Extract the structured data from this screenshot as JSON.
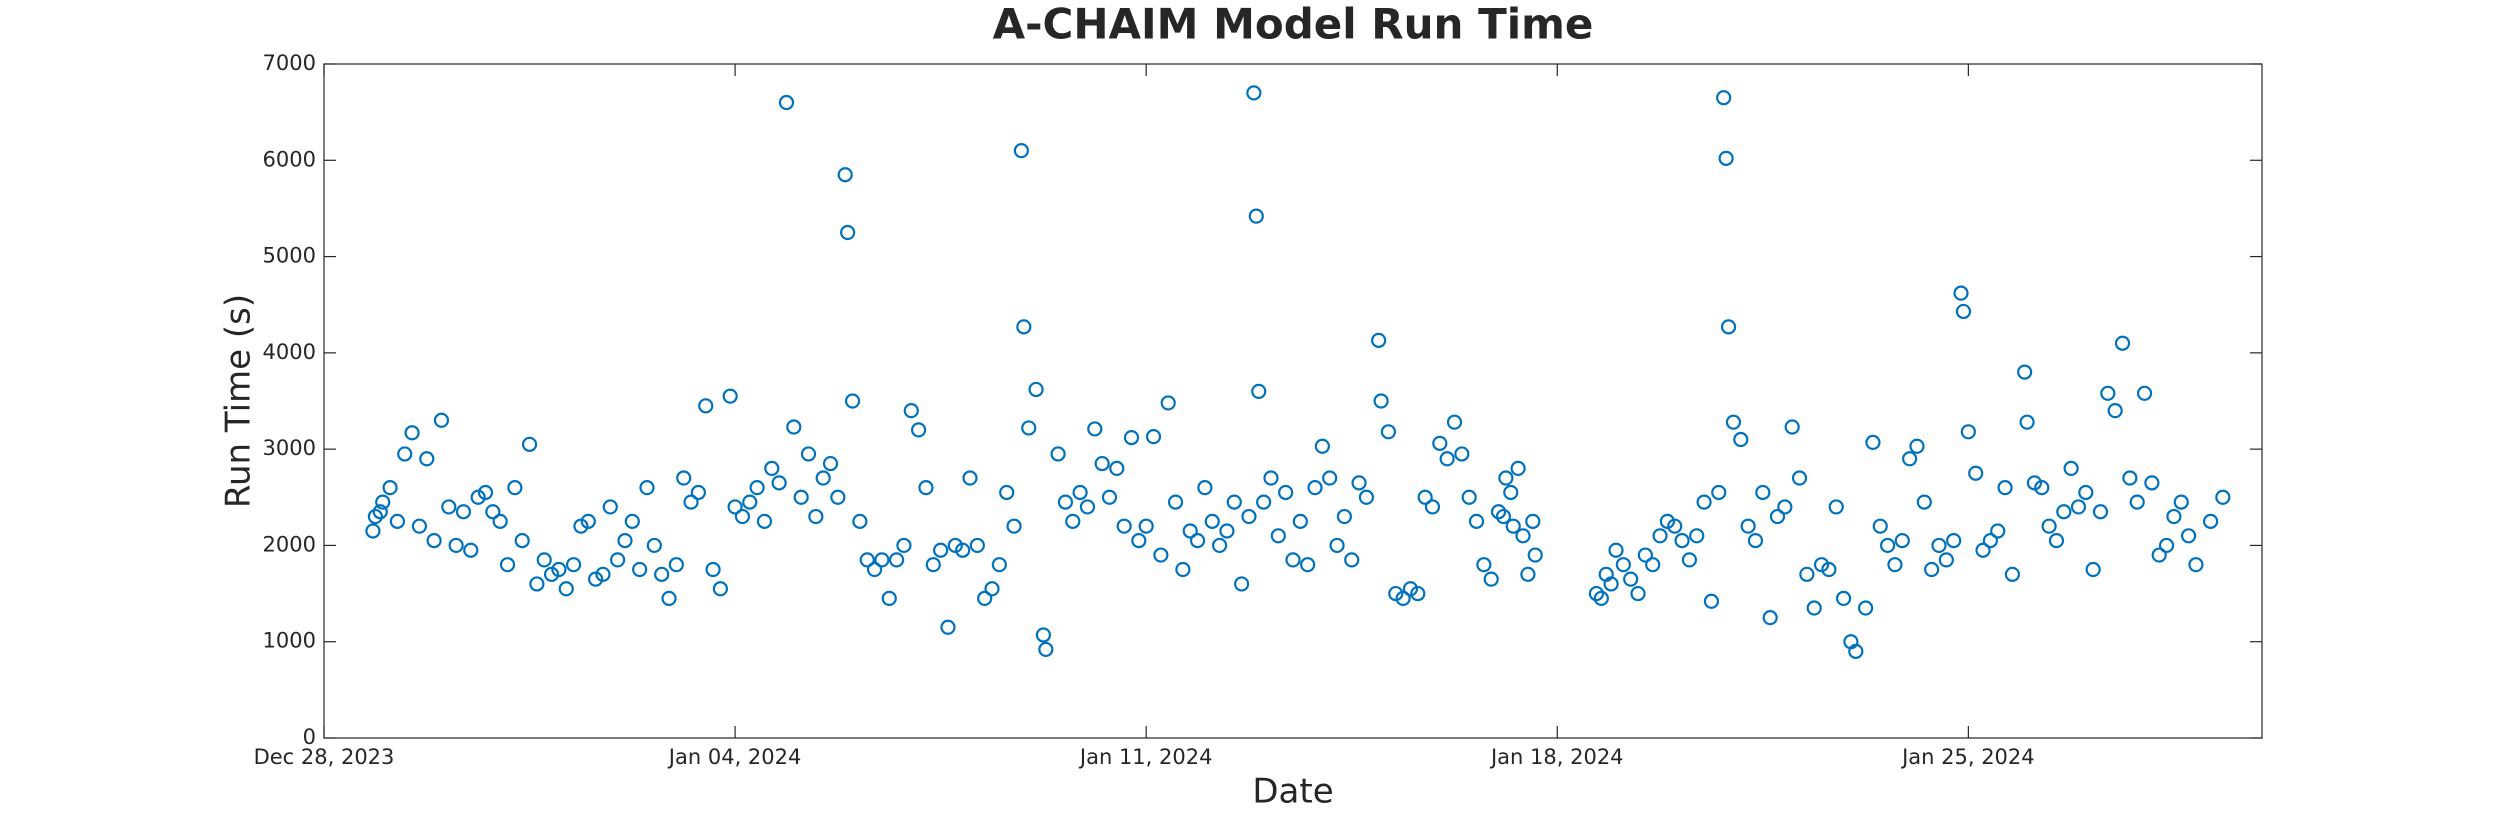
{
  "chart_data": {
    "type": "scatter",
    "title": "A-CHAIM Model Run Time",
    "x_label": "Date",
    "y_label": "Run Time (s)",
    "color": "#0072BD",
    "grid": false,
    "xlim": [
      "2023-12-28",
      "2024-01-30"
    ],
    "xticks": [
      {
        "value": "2023-12-28",
        "label": "Dec 28, 2023"
      },
      {
        "value": "2024-01-04",
        "label": "Jan 04, 2024"
      },
      {
        "value": "2024-01-11",
        "label": "Jan 11, 2024"
      },
      {
        "value": "2024-01-18",
        "label": "Jan 18, 2024"
      },
      {
        "value": "2024-01-25",
        "label": "Jan 25, 2024"
      }
    ],
    "ylim": [
      0,
      7000
    ],
    "yticks": [
      0,
      1000,
      2000,
      3000,
      4000,
      5000,
      6000,
      7000
    ],
    "x": [
      "2023-12-28T20:00",
      "2023-12-28T21:00",
      "2023-12-28T23:00",
      "2023-12-29T00:00",
      "2023-12-29T03:00",
      "2023-12-29T06:00",
      "2023-12-29T09:00",
      "2023-12-29T12:00",
      "2023-12-29T15:00",
      "2023-12-29T18:00",
      "2023-12-29T21:00",
      "2023-12-30T00:00",
      "2023-12-30T03:00",
      "2023-12-30T06:00",
      "2023-12-30T09:00",
      "2023-12-30T12:00",
      "2023-12-30T15:00",
      "2023-12-30T18:00",
      "2023-12-30T21:00",
      "2023-12-31T00:00",
      "2023-12-31T03:00",
      "2023-12-31T06:00",
      "2023-12-31T09:00",
      "2023-12-31T12:00",
      "2023-12-31T15:00",
      "2023-12-31T18:00",
      "2023-12-31T21:00",
      "2024-01-01T00:00",
      "2024-01-01T03:00",
      "2024-01-01T06:00",
      "2024-01-01T09:00",
      "2024-01-01T12:00",
      "2024-01-01T15:00",
      "2024-01-01T18:00",
      "2024-01-01T21:00",
      "2024-01-02T00:00",
      "2024-01-02T03:00",
      "2024-01-02T06:00",
      "2024-01-02T09:00",
      "2024-01-02T12:00",
      "2024-01-02T15:00",
      "2024-01-02T18:00",
      "2024-01-02T21:00",
      "2024-01-03T00:00",
      "2024-01-03T03:00",
      "2024-01-03T06:00",
      "2024-01-03T09:00",
      "2024-01-03T12:00",
      "2024-01-03T15:00",
      "2024-01-03T18:00",
      "2024-01-03T22:00",
      "2024-01-04T00:00",
      "2024-01-04T03:00",
      "2024-01-04T06:00",
      "2024-01-04T09:00",
      "2024-01-04T12:00",
      "2024-01-04T15:00",
      "2024-01-04T18:00",
      "2024-01-04T21:00",
      "2024-01-05T00:00",
      "2024-01-05T03:00",
      "2024-01-05T06:00",
      "2024-01-05T09:00",
      "2024-01-05T12:00",
      "2024-01-05T15:00",
      "2024-01-05T18:00",
      "2024-01-05T21:00",
      "2024-01-05T22:00",
      "2024-01-06T00:00",
      "2024-01-06T03:00",
      "2024-01-06T06:00",
      "2024-01-06T09:00",
      "2024-01-06T12:00",
      "2024-01-06T15:00",
      "2024-01-06T18:00",
      "2024-01-06T21:00",
      "2024-01-07T00:00",
      "2024-01-07T03:00",
      "2024-01-07T06:00",
      "2024-01-07T09:00",
      "2024-01-07T12:00",
      "2024-01-07T15:00",
      "2024-01-07T18:00",
      "2024-01-07T21:00",
      "2024-01-08T00:00",
      "2024-01-08T03:00",
      "2024-01-08T06:00",
      "2024-01-08T09:00",
      "2024-01-08T12:00",
      "2024-01-08T15:00",
      "2024-01-08T18:00",
      "2024-01-08T21:00",
      "2024-01-08T22:00",
      "2024-01-09T00:00",
      "2024-01-09T03:00",
      "2024-01-09T06:00",
      "2024-01-09T07:00",
      "2024-01-09T12:00",
      "2024-01-09T15:00",
      "2024-01-09T18:00",
      "2024-01-09T21:00",
      "2024-01-10T00:00",
      "2024-01-10T03:00",
      "2024-01-10T06:00",
      "2024-01-10T09:00",
      "2024-01-10T12:00",
      "2024-01-10T15:00",
      "2024-01-10T18:00",
      "2024-01-10T21:00",
      "2024-01-11T00:00",
      "2024-01-11T03:00",
      "2024-01-11T06:00",
      "2024-01-11T09:00",
      "2024-01-11T12:00",
      "2024-01-11T15:00",
      "2024-01-11T18:00",
      "2024-01-11T21:00",
      "2024-01-12T00:00",
      "2024-01-12T03:00",
      "2024-01-12T06:00",
      "2024-01-12T09:00",
      "2024-01-12T12:00",
      "2024-01-12T15:00",
      "2024-01-12T18:00",
      "2024-01-12T20:00",
      "2024-01-12T21:00",
      "2024-01-12T22:00",
      "2024-01-13T00:00",
      "2024-01-13T03:00",
      "2024-01-13T06:00",
      "2024-01-13T09:00",
      "2024-01-13T12:00",
      "2024-01-13T15:00",
      "2024-01-13T18:00",
      "2024-01-13T21:00",
      "2024-01-14T00:00",
      "2024-01-14T03:00",
      "2024-01-14T06:00",
      "2024-01-14T09:00",
      "2024-01-14T12:00",
      "2024-01-14T15:00",
      "2024-01-14T18:00",
      "2024-01-14T23:00",
      "2024-01-15T00:00",
      "2024-01-15T03:00",
      "2024-01-15T06:00",
      "2024-01-15T09:00",
      "2024-01-15T12:00",
      "2024-01-15T15:00",
      "2024-01-15T18:00",
      "2024-01-15T21:00",
      "2024-01-16T00:00",
      "2024-01-16T03:00",
      "2024-01-16T06:00",
      "2024-01-16T09:00",
      "2024-01-16T12:00",
      "2024-01-16T15:00",
      "2024-01-16T18:00",
      "2024-01-16T21:00",
      "2024-01-17T00:00",
      "2024-01-17T02:00",
      "2024-01-17T03:00",
      "2024-01-17T05:00",
      "2024-01-17T06:00",
      "2024-01-17T08:00",
      "2024-01-17T10:00",
      "2024-01-17T12:00",
      "2024-01-17T14:00",
      "2024-01-17T15:00",
      "2024-01-18T16:00",
      "2024-01-18T18:00",
      "2024-01-18T20:00",
      "2024-01-18T22:00",
      "2024-01-19T00:00",
      "2024-01-19T03:00",
      "2024-01-19T06:00",
      "2024-01-19T09:00",
      "2024-01-19T12:00",
      "2024-01-19T15:00",
      "2024-01-19T18:00",
      "2024-01-19T21:00",
      "2024-01-20T00:00",
      "2024-01-20T03:00",
      "2024-01-20T06:00",
      "2024-01-20T09:00",
      "2024-01-20T12:00",
      "2024-01-20T15:00",
      "2024-01-20T18:00",
      "2024-01-20T20:00",
      "2024-01-20T21:00",
      "2024-01-20T22:00",
      "2024-01-21T00:00",
      "2024-01-21T03:00",
      "2024-01-21T06:00",
      "2024-01-21T09:00",
      "2024-01-21T12:00",
      "2024-01-21T15:00",
      "2024-01-21T18:00",
      "2024-01-21T21:00",
      "2024-01-22T00:00",
      "2024-01-22T03:00",
      "2024-01-22T06:00",
      "2024-01-22T09:00",
      "2024-01-22T12:00",
      "2024-01-22T15:00",
      "2024-01-22T18:00",
      "2024-01-22T21:00",
      "2024-01-23T00:00",
      "2024-01-23T02:00",
      "2024-01-23T06:00",
      "2024-01-23T09:00",
      "2024-01-23T12:00",
      "2024-01-23T15:00",
      "2024-01-23T18:00",
      "2024-01-23T21:00",
      "2024-01-24T00:00",
      "2024-01-24T03:00",
      "2024-01-24T06:00",
      "2024-01-24T09:00",
      "2024-01-24T12:00",
      "2024-01-24T15:00",
      "2024-01-24T18:00",
      "2024-01-24T21:00",
      "2024-01-24T22:00",
      "2024-01-25T00:00",
      "2024-01-25T03:00",
      "2024-01-25T06:00",
      "2024-01-25T09:00",
      "2024-01-25T12:00",
      "2024-01-25T15:00",
      "2024-01-25T18:00",
      "2024-01-25T23:00",
      "2024-01-26T00:00",
      "2024-01-26T03:00",
      "2024-01-26T06:00",
      "2024-01-26T09:00",
      "2024-01-26T12:00",
      "2024-01-26T15:00",
      "2024-01-26T18:00",
      "2024-01-26T21:00",
      "2024-01-27T00:00",
      "2024-01-27T03:00",
      "2024-01-27T06:00",
      "2024-01-27T09:00",
      "2024-01-27T12:00",
      "2024-01-27T15:00",
      "2024-01-27T18:00",
      "2024-01-27T21:00",
      "2024-01-28T00:00",
      "2024-01-28T03:00",
      "2024-01-28T06:00",
      "2024-01-28T09:00",
      "2024-01-28T12:00",
      "2024-01-28T15:00",
      "2024-01-28T18:00",
      "2024-01-28T21:00",
      "2024-01-29T03:00",
      "2024-01-29T08:00"
    ],
    "values": [
      2150,
      2300,
      2350,
      2450,
      2600,
      2250,
      2950,
      3170,
      2200,
      2900,
      2050,
      3300,
      2400,
      2000,
      2350,
      1950,
      2500,
      2550,
      2350,
      2250,
      1800,
      2600,
      2050,
      3050,
      1600,
      1850,
      1700,
      1750,
      1550,
      1800,
      2200,
      2250,
      1650,
      1700,
      2400,
      1850,
      2050,
      2250,
      1750,
      2600,
      2000,
      1700,
      1450,
      1800,
      2700,
      2450,
      2550,
      3450,
      1750,
      1550,
      3550,
      2400,
      2300,
      2450,
      2600,
      2250,
      2800,
      2650,
      6600,
      3230,
      2500,
      2950,
      2300,
      2700,
      2850,
      2500,
      5850,
      5250,
      3500,
      2250,
      1850,
      1750,
      1850,
      1450,
      1850,
      2000,
      3400,
      3200,
      2600,
      1800,
      1950,
      1150,
      2000,
      1950,
      2700,
      2000,
      1450,
      1550,
      1800,
      2550,
      2200,
      6100,
      4270,
      3220,
      3620,
      1070,
      920,
      2950,
      2450,
      2250,
      2550,
      2400,
      3210,
      2850,
      2500,
      2800,
      2200,
      3120,
      2050,
      2200,
      3130,
      1900,
      3480,
      2450,
      1750,
      2150,
      2050,
      2600,
      2250,
      2000,
      2150,
      2450,
      1600,
      2300,
      6700,
      5420,
      3600,
      2450,
      2700,
      2100,
      2550,
      1850,
      2250,
      1800,
      2600,
      3030,
      2700,
      2000,
      2300,
      1850,
      2650,
      2500,
      4130,
      3500,
      3180,
      1500,
      1450,
      1550,
      1500,
      2500,
      2400,
      3060,
      2900,
      3280,
      2950,
      2500,
      2250,
      1800,
      1650,
      2350,
      2300,
      2700,
      2550,
      2200,
      2800,
      2100,
      1700,
      2250,
      1900,
      1500,
      1450,
      1700,
      1600,
      1950,
      1800,
      1650,
      1500,
      1900,
      1800,
      2100,
      2250,
      2200,
      2050,
      1850,
      2100,
      2450,
      1420,
      2550,
      6650,
      6020,
      4270,
      3280,
      3100,
      2200,
      2050,
      2550,
      1250,
      2300,
      2400,
      3230,
      2700,
      1700,
      1350,
      1800,
      1750,
      2400,
      1450,
      1000,
      900,
      1350,
      3070,
      2200,
      2000,
      1800,
      2050,
      2900,
      3030,
      2450,
      1750,
      2000,
      1850,
      2050,
      4620,
      4430,
      3180,
      2750,
      1950,
      2050,
      2150,
      2600,
      1700,
      3800,
      3280,
      2650,
      2600,
      2200,
      2050,
      2350,
      2800,
      2400,
      2550,
      1750,
      2350,
      3580,
      3400,
      4100,
      2700,
      2450,
      3580,
      2650,
      1900,
      2000,
      2300,
      2450,
      2100,
      1800,
      2250,
      2500
    ]
  }
}
